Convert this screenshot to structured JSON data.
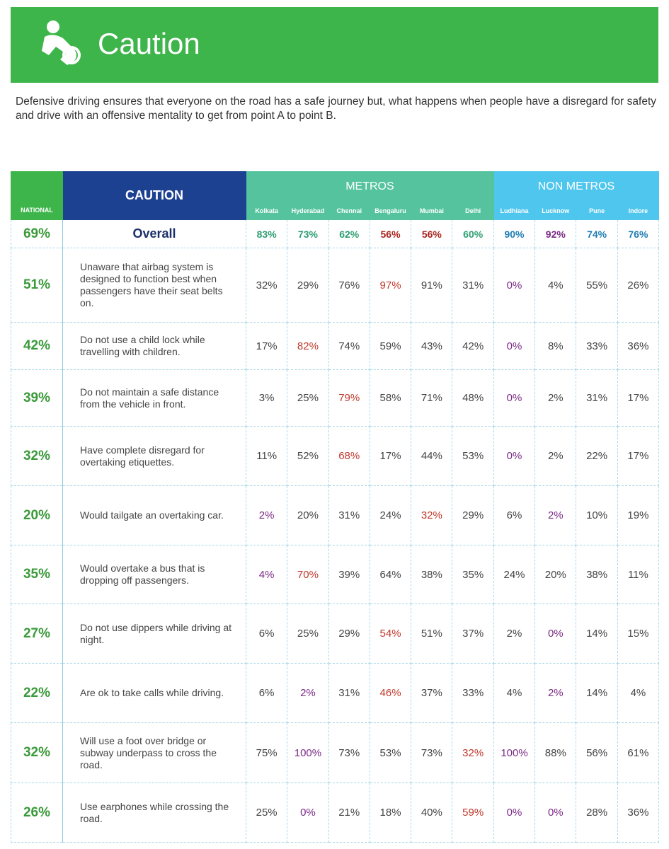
{
  "header": {
    "title": "Caution"
  },
  "intro": "Defensive driving ensures that everyone on the road has a safe journey but, what happens when people have a disregard for safety and drive with an offensive mentality to get from point A to point B.",
  "table": {
    "national_label": "NATIONAL",
    "caution_label": "CAUTION",
    "groups": [
      {
        "name": "METROS",
        "color": "#55c49e",
        "cities": [
          "Kolkata",
          "Hyderabad",
          "Chennai",
          "Bengaluru",
          "Mumbai",
          "Delhi"
        ]
      },
      {
        "name": "NON METROS",
        "color": "#4fc6ee",
        "cities": [
          "Ludhiana",
          "Lucknow",
          "Pune",
          "Indore"
        ]
      }
    ],
    "rows": [
      {
        "national": "69%",
        "label": "Overall",
        "cells": [
          {
            "text": "83%",
            "color": "#2e9e72"
          },
          {
            "text": "73%",
            "color": "#2e9e72"
          },
          {
            "text": "62%",
            "color": "#2e9e72"
          },
          {
            "text": "56%",
            "color": "#a8241f"
          },
          {
            "text": "56%",
            "color": "#a8241f"
          },
          {
            "text": "60%",
            "color": "#2e9e72"
          },
          {
            "text": "90%",
            "color": "#1f7db3"
          },
          {
            "text": "92%",
            "color": "#7b2a86"
          },
          {
            "text": "74%",
            "color": "#1f7db3"
          },
          {
            "text": "76%",
            "color": "#1f7db3"
          }
        ]
      },
      {
        "national": "51%",
        "label": "Unaware that airbag system is designed to function best when passengers have their seat belts on.",
        "cells": [
          "32%",
          "29%",
          "76%",
          {
            "text": "97%",
            "color": "#c0392b"
          },
          "91%",
          "31%",
          {
            "text": "0%",
            "color": "#7b2a86"
          },
          "4%",
          "55%",
          "26%"
        ]
      },
      {
        "national": "42%",
        "label": "Do not use a child lock while travelling with children.",
        "cells": [
          "17%",
          {
            "text": "82%",
            "color": "#c0392b"
          },
          "74%",
          "59%",
          "43%",
          "42%",
          {
            "text": "0%",
            "color": "#7b2a86"
          },
          "8%",
          "33%",
          "36%"
        ]
      },
      {
        "national": "39%",
        "label": "Do not maintain a safe distance from the vehicle in front.",
        "cells": [
          "3%",
          "25%",
          {
            "text": "79%",
            "color": "#c0392b"
          },
          "58%",
          "71%",
          "48%",
          {
            "text": "0%",
            "color": "#7b2a86"
          },
          "2%",
          "31%",
          "17%"
        ]
      },
      {
        "national": "32%",
        "label": "Have complete disregard for overtaking etiquettes.",
        "cells": [
          "11%",
          "52%",
          {
            "text": "68%",
            "color": "#c0392b"
          },
          "17%",
          "44%",
          "53%",
          {
            "text": "0%",
            "color": "#7b2a86"
          },
          "2%",
          "22%",
          "17%"
        ]
      },
      {
        "national": "20%",
        "label": "Would tailgate an overtaking car.",
        "cells": [
          {
            "text": "2%",
            "color": "#7b2a86"
          },
          "20%",
          "31%",
          "24%",
          {
            "text": "32%",
            "color": "#c0392b"
          },
          "29%",
          "6%",
          {
            "text": "2%",
            "color": "#7b2a86"
          },
          "10%",
          "19%"
        ]
      },
      {
        "national": "35%",
        "label": "Would overtake a bus that is dropping off passengers.",
        "cells": [
          {
            "text": "4%",
            "color": "#7b2a86"
          },
          {
            "text": "70%",
            "color": "#c0392b"
          },
          "39%",
          "64%",
          "38%",
          "35%",
          "24%",
          "20%",
          "38%",
          "11%"
        ]
      },
      {
        "national": "27%",
        "label": "Do not use dippers while driving at night.",
        "cells": [
          "6%",
          "25%",
          "29%",
          {
            "text": "54%",
            "color": "#c0392b"
          },
          "51%",
          "37%",
          "2%",
          {
            "text": "0%",
            "color": "#7b2a86"
          },
          "14%",
          "15%"
        ]
      },
      {
        "national": "22%",
        "label": "Are ok to take calls while driving.",
        "cells": [
          "6%",
          {
            "text": "2%",
            "color": "#7b2a86"
          },
          "31%",
          {
            "text": "46%",
            "color": "#c0392b"
          },
          "37%",
          "33%",
          "4%",
          {
            "text": "2%",
            "color": "#7b2a86"
          },
          "14%",
          "4%"
        ]
      },
      {
        "national": "32%",
        "label": "Will use a foot over bridge or subway underpass to cross the road.",
        "cells": [
          "75%",
          {
            "text": "100%",
            "color": "#7b2a86"
          },
          "73%",
          "53%",
          "73%",
          {
            "text": "32%",
            "color": "#c0392b"
          },
          {
            "text": "100%",
            "color": "#7b2a86"
          },
          "88%",
          "56%",
          "61%"
        ]
      },
      {
        "national": "26%",
        "label": "Use earphones while crossing the road.",
        "cells": [
          "25%",
          {
            "text": "0%",
            "color": "#7b2a86"
          },
          "21%",
          "18%",
          "40%",
          {
            "text": "59%",
            "color": "#c0392b"
          },
          {
            "text": "0%",
            "color": "#7b2a86"
          },
          {
            "text": "0%",
            "color": "#7b2a86"
          },
          "28%",
          "36%"
        ]
      }
    ]
  }
}
